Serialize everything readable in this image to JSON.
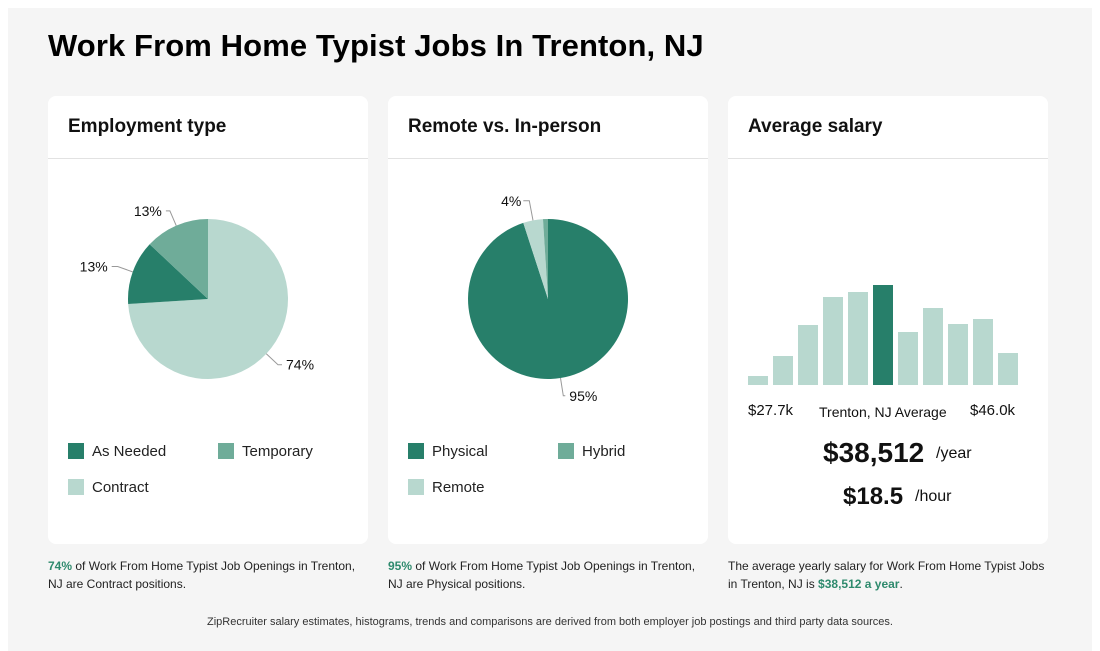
{
  "page": {
    "title": "Work From Home Typist Jobs In Trenton, NJ"
  },
  "colors": {
    "dark": "#277f6a",
    "medium": "#6fac99",
    "light": "#b8d8cf",
    "accent": "#2e8a6d"
  },
  "employment": {
    "title": "Employment type",
    "legend": [
      "As Needed",
      "Temporary",
      "Contract"
    ],
    "caption_pct": "74%",
    "caption_rest": "of Work From Home Typist Job Openings in Trenton, NJ are Contract positions."
  },
  "remote": {
    "title": "Remote vs. In-person",
    "legend": [
      "Physical",
      "Hybrid",
      "Remote"
    ],
    "caption_pct": "95%",
    "caption_rest": "of Work From Home Typist Job Openings in Trenton, NJ are Physical positions."
  },
  "salary": {
    "title": "Average salary",
    "min_label": "$27.7k",
    "avg_label": "Trenton, NJ Average",
    "max_label": "$46.0k",
    "yearly": "$38,512",
    "yearly_unit": "/year",
    "hourly": "$18.5",
    "hourly_unit": "/hour",
    "caption_pre": "The average yearly salary for Work From Home Typist Jobs in Trenton, NJ is",
    "caption_value": "$38,512 a year",
    "caption_post": "."
  },
  "footer": "ZipRecruiter salary estimates, histograms, trends and comparisons are derived from both employer job postings and third party data sources.",
  "chart_data": [
    {
      "type": "pie",
      "title": "Employment type",
      "categories": [
        "Contract",
        "As Needed",
        "Temporary"
      ],
      "values": [
        74,
        13,
        13
      ],
      "labels": [
        "74%",
        "13%",
        "13%"
      ],
      "colors": [
        "#b8d8cf",
        "#277f6a",
        "#6fac99"
      ]
    },
    {
      "type": "pie",
      "title": "Remote vs. In-person",
      "categories": [
        "Physical",
        "Remote",
        "Hybrid"
      ],
      "values": [
        95,
        4,
        1
      ],
      "labels": [
        "95%",
        "4%",
        ""
      ],
      "colors": [
        "#277f6a",
        "#b8d8cf",
        "#6fac99"
      ]
    },
    {
      "type": "bar",
      "title": "Average salary",
      "x_range": [
        "$27.7k",
        "$46.0k"
      ],
      "values": [
        9,
        29,
        60,
        88,
        93,
        100,
        53,
        77,
        61,
        66,
        32
      ],
      "highlight_index": 5,
      "highlight_label": "Trenton, NJ Average"
    }
  ]
}
